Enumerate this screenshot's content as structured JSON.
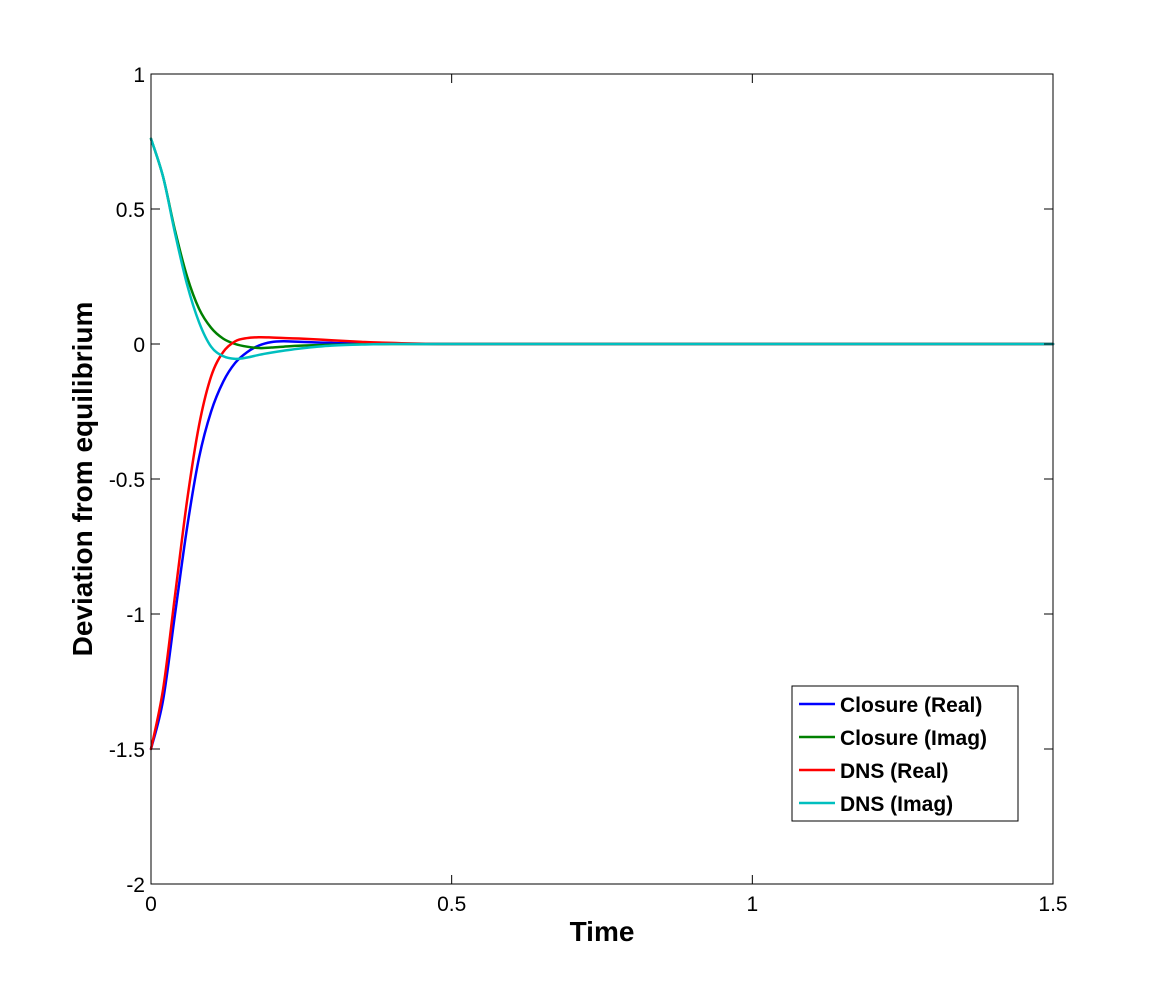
{
  "chart_data": {
    "type": "line",
    "title": "",
    "xlabel": "Time",
    "ylabel": "Deviation from equilibrium",
    "xlim": [
      0,
      1.5
    ],
    "ylim": [
      -2,
      1
    ],
    "xticks": [
      0,
      0.5,
      1,
      1.5
    ],
    "xtick_labels": [
      "0",
      "0.5",
      "1",
      "1.5"
    ],
    "yticks": [
      -2,
      -1.5,
      -1,
      -0.5,
      0,
      0.5,
      1
    ],
    "ytick_labels": [
      "-2",
      "-1.5",
      "-1",
      "-0.5",
      "0",
      "0.5",
      "1"
    ],
    "grid": false,
    "legend_position": "bottom-right",
    "series": [
      {
        "name": "Closure (Real)",
        "color": "#0000ff",
        "x": [
          0,
          0.02,
          0.04,
          0.06,
          0.08,
          0.1,
          0.12,
          0.14,
          0.16,
          0.18,
          0.2,
          0.22,
          0.25,
          0.3,
          0.35,
          0.4,
          0.5,
          0.75,
          1.0,
          1.25,
          1.5
        ],
        "y": [
          -1.5,
          -1.32,
          -1.0,
          -0.68,
          -0.42,
          -0.25,
          -0.14,
          -0.07,
          -0.03,
          -0.005,
          0.007,
          0.01,
          0.008,
          0.004,
          0.002,
          0.001,
          0.0,
          0.0,
          0.0,
          0.0,
          0.0
        ]
      },
      {
        "name": "Closure (Imag)",
        "color": "#008000",
        "x": [
          0,
          0.02,
          0.04,
          0.06,
          0.08,
          0.1,
          0.12,
          0.14,
          0.16,
          0.18,
          0.2,
          0.22,
          0.25,
          0.3,
          0.35,
          0.4,
          0.5,
          0.75,
          1.0,
          1.25,
          1.5
        ],
        "y": [
          0.76,
          0.62,
          0.42,
          0.25,
          0.13,
          0.06,
          0.02,
          0.0,
          -0.01,
          -0.015,
          -0.013,
          -0.01,
          -0.006,
          -0.003,
          -0.001,
          0.0,
          0.0,
          0.0,
          0.0,
          0.0,
          0.0
        ]
      },
      {
        "name": "DNS (Real)",
        "color": "#ff0000",
        "x": [
          0,
          0.02,
          0.04,
          0.06,
          0.08,
          0.1,
          0.12,
          0.14,
          0.16,
          0.18,
          0.2,
          0.22,
          0.25,
          0.3,
          0.35,
          0.4,
          0.5,
          0.75,
          1.0,
          1.25,
          1.5
        ],
        "y": [
          -1.5,
          -1.28,
          -0.93,
          -0.58,
          -0.3,
          -0.12,
          -0.03,
          0.01,
          0.022,
          0.025,
          0.024,
          0.022,
          0.02,
          0.014,
          0.008,
          0.004,
          0.0,
          0.0,
          0.0,
          0.0,
          0.0
        ]
      },
      {
        "name": "DNS (Imag)",
        "color": "#00bfbf",
        "x": [
          0,
          0.02,
          0.04,
          0.06,
          0.08,
          0.1,
          0.12,
          0.14,
          0.16,
          0.18,
          0.2,
          0.22,
          0.25,
          0.3,
          0.35,
          0.4,
          0.5,
          0.75,
          1.0,
          1.25,
          1.5
        ],
        "y": [
          0.76,
          0.62,
          0.41,
          0.22,
          0.08,
          -0.01,
          -0.045,
          -0.055,
          -0.05,
          -0.04,
          -0.032,
          -0.025,
          -0.016,
          -0.006,
          -0.002,
          0.0,
          0.0,
          0.0,
          0.0,
          0.0,
          0.0
        ]
      }
    ]
  }
}
